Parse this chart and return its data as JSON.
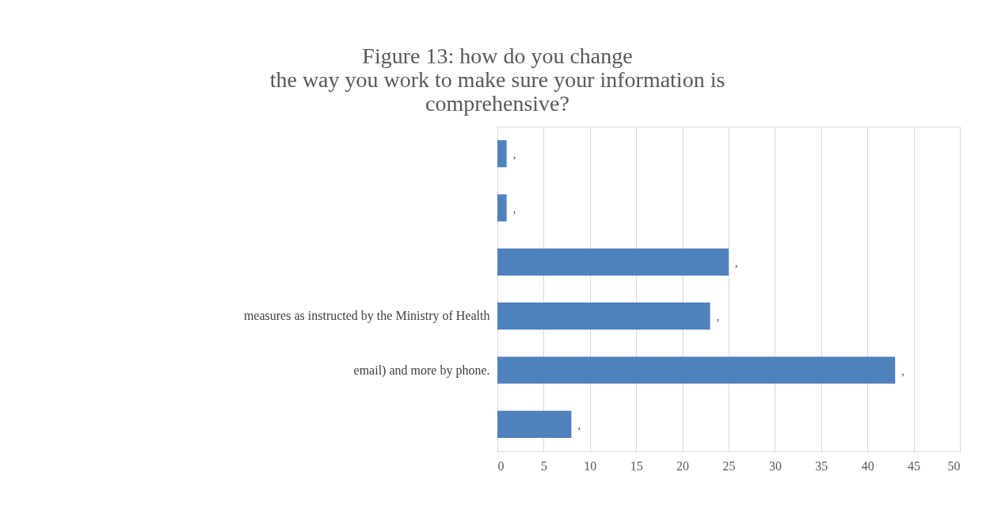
{
  "chart_data": {
    "type": "bar",
    "orientation": "horizontal",
    "title": "Figure 13: how do you change\nthe way you work to make sure your information is\ncomprehensive?",
    "categories": [
      null,
      null,
      null,
      "measures as instructed by the Ministry of Health",
      "email) and more by phone.",
      null
    ],
    "values": [
      1,
      1,
      25,
      23,
      43,
      8
    ],
    "color": "#4f81bd",
    "value_labels": [
      ",",
      ",",
      ",",
      ",",
      ",",
      ","
    ],
    "xlim": [
      0,
      50
    ],
    "xticks": [
      0,
      5,
      10,
      15,
      20,
      25,
      30,
      35,
      40,
      45,
      50
    ],
    "grid": "x"
  }
}
